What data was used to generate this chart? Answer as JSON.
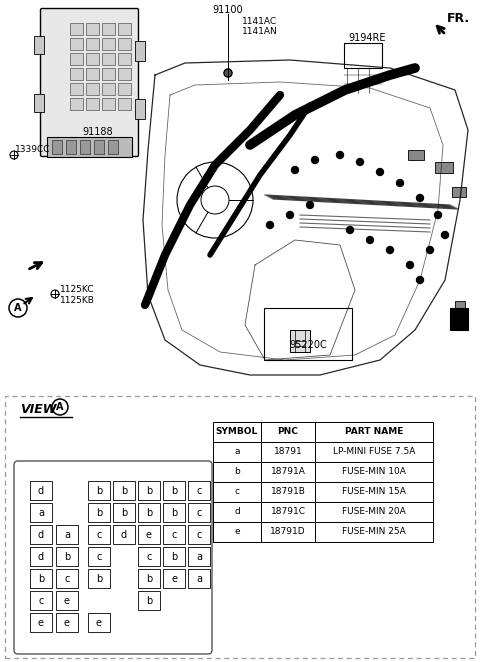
{
  "bg_color": "#ffffff",
  "labels": {
    "fr": "FR.",
    "part_91100": "91100",
    "part_1141AC": "1141AC",
    "part_1141AN": "1141AN",
    "part_9194RE": "9194RE",
    "part_91188": "91188",
    "part_1339CC": "1339CC",
    "part_1125KC": "1125KC",
    "part_1125KB": "1125KB",
    "part_95220C": "95220C",
    "view_label": "VIEW",
    "circle_A": "A"
  },
  "table_headers": [
    "SYMBOL",
    "PNC",
    "PART NAME"
  ],
  "table_rows": [
    [
      "a",
      "18791",
      "LP-MINI FUSE 7.5A"
    ],
    [
      "b",
      "18791A",
      "FUSE-MIN 10A"
    ],
    [
      "c",
      "18791B",
      "FUSE-MIN 15A"
    ],
    [
      "d",
      "18791C",
      "FUSE-MIN 20A"
    ],
    [
      "e",
      "18791D",
      "FUSE-MIN 25A"
    ]
  ],
  "fuse_rows": [
    [
      [
        "d",
        0,
        0
      ],
      [
        "b",
        2,
        0
      ],
      [
        "b",
        3,
        0
      ],
      [
        "b",
        4,
        0
      ],
      [
        "b",
        5,
        0
      ],
      [
        "c",
        6,
        0
      ]
    ],
    [
      [
        "a",
        0,
        1
      ],
      [
        "b",
        2,
        1
      ],
      [
        "b",
        3,
        1
      ],
      [
        "b",
        4,
        1
      ],
      [
        "b",
        5,
        1
      ],
      [
        "c",
        6,
        1
      ]
    ],
    [
      [
        "d",
        0,
        2
      ],
      [
        "a",
        1,
        2
      ],
      [
        "c",
        2,
        2
      ],
      [
        "d",
        3,
        2
      ],
      [
        "e",
        4,
        2
      ],
      [
        "c",
        5,
        2
      ],
      [
        "c",
        6,
        2
      ]
    ],
    [
      [
        "d",
        0,
        3
      ],
      [
        "b",
        1,
        3
      ],
      [
        "c",
        2,
        3
      ],
      [
        "c",
        4,
        3
      ],
      [
        "b",
        5,
        3
      ],
      [
        "a",
        6,
        3
      ]
    ],
    [
      [
        "b",
        0,
        4
      ],
      [
        "c",
        1,
        4
      ],
      [
        "b",
        2,
        4
      ],
      [
        "b",
        4,
        4
      ],
      [
        "e",
        5,
        4
      ],
      [
        "a",
        6,
        4
      ]
    ],
    [
      [
        "c",
        0,
        5
      ],
      [
        "e",
        1,
        5
      ],
      [
        "b",
        4,
        5
      ]
    ],
    [
      [
        "e",
        0,
        6
      ],
      [
        "e",
        1,
        6
      ],
      [
        "e",
        2,
        6
      ]
    ]
  ]
}
